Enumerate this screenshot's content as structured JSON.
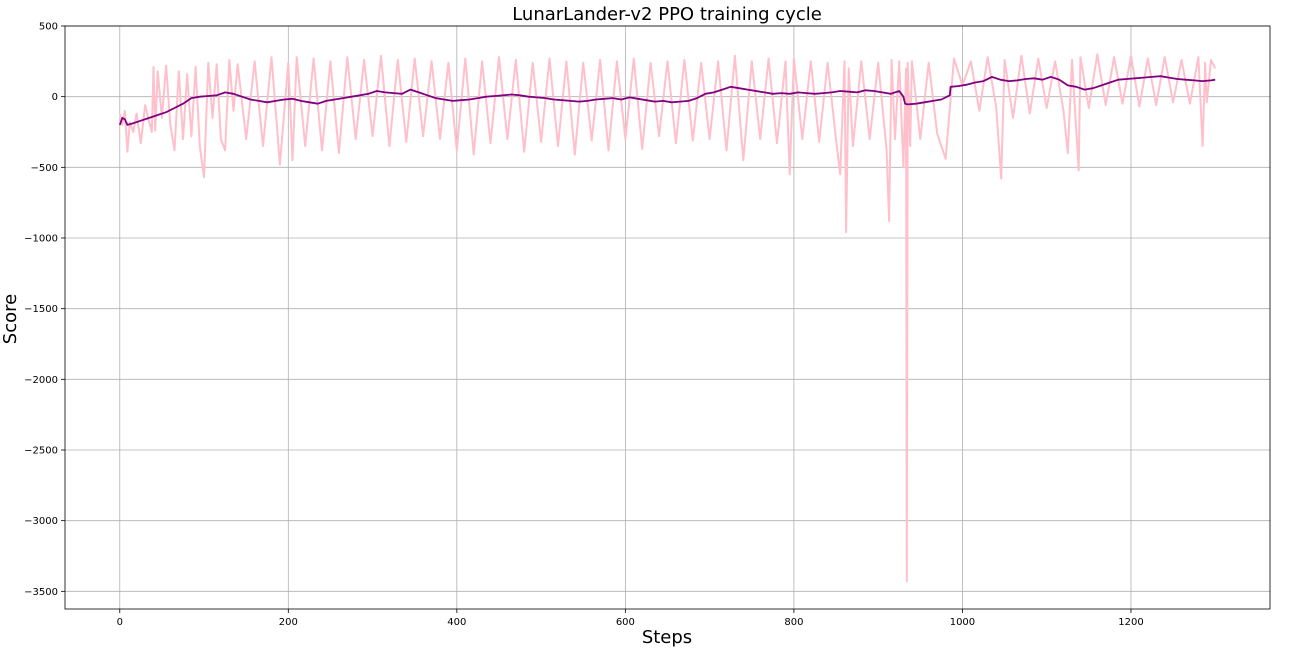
{
  "chart_data": {
    "type": "line",
    "title": "LunarLander-v2 PPO training cycle",
    "xlabel": "Steps",
    "ylabel": "Score",
    "xlim": [
      -65,
      1365
    ],
    "ylim": [
      -3625,
      500
    ],
    "xticks": [
      0,
      200,
      400,
      600,
      800,
      1000,
      1200
    ],
    "yticks": [
      500,
      0,
      -500,
      -1000,
      -1500,
      -2000,
      -2500,
      -3000,
      -3500
    ],
    "xtick_labels": [
      "0",
      "200",
      "400",
      "600",
      "800",
      "1000",
      "1200"
    ],
    "ytick_labels": [
      "500",
      "0",
      "−500",
      "−1000",
      "−1500",
      "−2000",
      "−2500",
      "−3000",
      "−3500"
    ],
    "grid": true,
    "colors": {
      "raw": "#ffc0cb",
      "average": "#800080"
    },
    "series": [
      {
        "kind": "raw",
        "x": [
          0,
          3,
          6,
          9,
          12,
          16,
          20,
          25,
          30,
          35,
          38,
          40,
          42,
          45,
          50,
          55,
          60,
          65,
          70,
          75,
          80,
          85,
          90,
          95,
          100,
          105,
          110,
          115,
          120,
          125,
          130,
          135,
          140,
          150,
          160,
          170,
          180,
          190,
          200,
          205,
          210,
          220,
          230,
          240,
          250,
          260,
          270,
          280,
          290,
          300,
          310,
          320,
          330,
          340,
          350,
          360,
          370,
          380,
          390,
          400,
          410,
          420,
          430,
          440,
          450,
          460,
          470,
          480,
          490,
          500,
          510,
          520,
          530,
          540,
          550,
          560,
          570,
          580,
          590,
          600,
          610,
          620,
          630,
          640,
          650,
          660,
          670,
          680,
          690,
          700,
          710,
          720,
          730,
          740,
          750,
          760,
          770,
          780,
          790,
          795,
          800,
          810,
          820,
          830,
          840,
          850,
          855,
          860,
          862,
          865,
          870,
          880,
          890,
          900,
          910,
          913,
          916,
          920,
          925,
          930,
          933,
          934,
          935,
          938,
          940,
          950,
          960,
          970,
          980,
          990,
          1000,
          1010,
          1020,
          1030,
          1040,
          1046,
          1050,
          1060,
          1070,
          1080,
          1090,
          1100,
          1110,
          1120,
          1125,
          1130,
          1138,
          1140,
          1150,
          1160,
          1170,
          1180,
          1190,
          1200,
          1210,
          1220,
          1230,
          1240,
          1250,
          1260,
          1270,
          1280,
          1285,
          1288,
          1290,
          1295,
          1300
        ],
        "y": [
          -120,
          -200,
          -100,
          -390,
          -180,
          -250,
          -120,
          -330,
          -60,
          -180,
          -250,
          210,
          -240,
          180,
          -150,
          220,
          -200,
          -380,
          180,
          -300,
          160,
          -280,
          210,
          -350,
          -570,
          240,
          -150,
          230,
          -300,
          -380,
          260,
          -100,
          230,
          -300,
          250,
          -350,
          280,
          -480,
          240,
          -450,
          280,
          -350,
          270,
          -380,
          250,
          -400,
          280,
          -300,
          260,
          -280,
          290,
          -350,
          260,
          -320,
          270,
          -280,
          250,
          -300,
          240,
          -380,
          270,
          -410,
          250,
          -330,
          280,
          -300,
          260,
          -390,
          240,
          -320,
          270,
          -350,
          250,
          -410,
          240,
          -310,
          260,
          -380,
          250,
          -300,
          270,
          -370,
          240,
          -280,
          250,
          -330,
          260,
          -310,
          240,
          -300,
          250,
          -380,
          290,
          -450,
          250,
          -300,
          270,
          -330,
          250,
          -550,
          270,
          -300,
          250,
          -320,
          240,
          -300,
          -550,
          250,
          -960,
          200,
          -350,
          250,
          -300,
          240,
          -380,
          -880,
          260,
          -300,
          250,
          -500,
          200,
          -3430,
          240,
          -350,
          250,
          -300,
          240,
          -260,
          -440,
          270,
          80,
          250,
          -100,
          280,
          -70,
          -580,
          260,
          -150,
          290,
          -120,
          270,
          -80,
          250,
          -100,
          -400,
          260,
          -520,
          280,
          -80,
          300,
          -60,
          280,
          -50,
          290,
          -70,
          270,
          -60,
          280,
          -40,
          260,
          -50,
          280,
          -350,
          240,
          -40,
          260,
          200
        ]
      },
      {
        "kind": "moving-average",
        "x": [
          0,
          3,
          6,
          9,
          15,
          25,
          35,
          45,
          55,
          65,
          75,
          85,
          95,
          105,
          115,
          125,
          135,
          145,
          155,
          165,
          175,
          185,
          195,
          205,
          215,
          225,
          235,
          245,
          255,
          265,
          275,
          285,
          295,
          305,
          315,
          325,
          335,
          345,
          355,
          365,
          375,
          385,
          395,
          405,
          415,
          425,
          435,
          445,
          455,
          465,
          475,
          485,
          495,
          505,
          515,
          525,
          535,
          545,
          555,
          565,
          575,
          585,
          595,
          605,
          615,
          625,
          635,
          645,
          655,
          665,
          675,
          685,
          695,
          705,
          715,
          725,
          735,
          745,
          755,
          765,
          775,
          785,
          795,
          805,
          815,
          825,
          835,
          845,
          855,
          865,
          875,
          885,
          895,
          905,
          915,
          925,
          930,
          932,
          935,
          945,
          955,
          965,
          975,
          985,
          986,
          995,
          1005,
          1015,
          1025,
          1035,
          1045,
          1055,
          1065,
          1075,
          1085,
          1095,
          1105,
          1115,
          1125,
          1135,
          1145,
          1155,
          1165,
          1175,
          1185,
          1195,
          1205,
          1215,
          1225,
          1235,
          1245,
          1255,
          1265,
          1275,
          1285,
          1295,
          1300
        ],
        "y": [
          -200,
          -150,
          -160,
          -200,
          -190,
          -170,
          -150,
          -130,
          -110,
          -80,
          -50,
          -10,
          0,
          5,
          10,
          30,
          20,
          0,
          -20,
          -30,
          -40,
          -30,
          -20,
          -15,
          -30,
          -40,
          -50,
          -30,
          -20,
          -10,
          0,
          10,
          20,
          40,
          30,
          25,
          20,
          50,
          30,
          10,
          -10,
          -20,
          -30,
          -25,
          -20,
          -10,
          0,
          5,
          10,
          15,
          10,
          0,
          -5,
          -10,
          -20,
          -25,
          -30,
          -35,
          -30,
          -20,
          -15,
          -10,
          -20,
          -5,
          -15,
          -25,
          -35,
          -30,
          -40,
          -35,
          -30,
          -10,
          20,
          30,
          50,
          70,
          60,
          50,
          40,
          30,
          20,
          25,
          20,
          30,
          25,
          20,
          25,
          30,
          40,
          35,
          30,
          45,
          40,
          30,
          20,
          40,
          0,
          -50,
          -55,
          -50,
          -40,
          -30,
          -20,
          10,
          70,
          75,
          85,
          100,
          110,
          140,
          120,
          110,
          115,
          125,
          130,
          120,
          140,
          120,
          80,
          70,
          50,
          60,
          80,
          100,
          120,
          125,
          130,
          135,
          140,
          145,
          135,
          125,
          120,
          115,
          110,
          115,
          120
        ]
      }
    ]
  }
}
